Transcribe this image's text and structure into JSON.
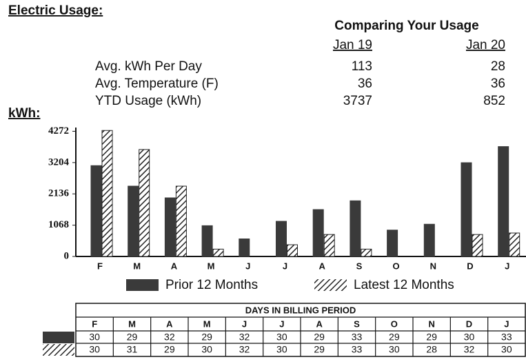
{
  "header": {
    "title": "Electric Usage:"
  },
  "comparison": {
    "title": "Comparing Your Usage",
    "columns": [
      "Jan 19",
      "Jan 20"
    ],
    "rows": [
      {
        "label": "Avg. kWh Per Day",
        "values": [
          "113",
          "28"
        ]
      },
      {
        "label": "Avg. Temperature (F)",
        "values": [
          "36",
          "36"
        ]
      },
      {
        "label": "YTD Usage (kWh)",
        "values": [
          "3737",
          "852"
        ]
      }
    ]
  },
  "chart_data": {
    "type": "bar",
    "ylabel": "kWh:",
    "categories": [
      "F",
      "M",
      "A",
      "M",
      "J",
      "J",
      "A",
      "S",
      "O",
      "N",
      "D",
      "J"
    ],
    "series": [
      {
        "name": "Prior 12 Months",
        "color": "#3a3a3a",
        "pattern": "solid",
        "values": [
          3100,
          2400,
          2000,
          1050,
          600,
          1200,
          1600,
          1900,
          900,
          1100,
          3200,
          3750
        ]
      },
      {
        "name": "Latest 12 Months",
        "color": "#222222",
        "pattern": "hatch",
        "values": [
          4300,
          3650,
          2400,
          250,
          null,
          400,
          750,
          250,
          null,
          null,
          750,
          800
        ]
      }
    ],
    "ylim": [
      0,
      4400
    ],
    "yticks": [
      0,
      1068,
      2136,
      3204,
      4272
    ],
    "grid": false
  },
  "days_table": {
    "title": "DAYS IN BILLING PERIOD",
    "months": [
      "F",
      "M",
      "A",
      "M",
      "J",
      "J",
      "A",
      "S",
      "O",
      "N",
      "D",
      "J"
    ],
    "rows": [
      [
        "30",
        "29",
        "32",
        "29",
        "32",
        "30",
        "29",
        "33",
        "29",
        "29",
        "30",
        "33"
      ],
      [
        "30",
        "31",
        "29",
        "30",
        "32",
        "30",
        "29",
        "33",
        "30",
        "28",
        "32",
        "30"
      ]
    ]
  }
}
